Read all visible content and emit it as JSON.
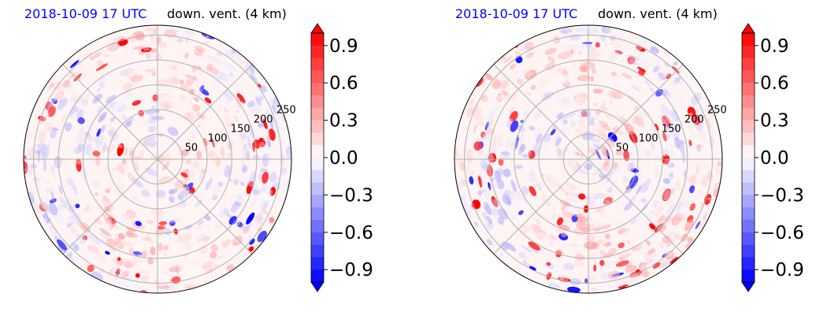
{
  "panels": [
    {
      "id": "left",
      "date_label": "2018-10-09 17 UTC",
      "variable_label": "down. vent. (4 km)"
    },
    {
      "id": "right",
      "date_label": "2018-10-09 17 UTC",
      "variable_label": "down. vent. (4 km)"
    }
  ],
  "colors": {
    "date_label": "#0000ff",
    "positive": "#ff0000",
    "negative": "#0000ff",
    "neutral": "#ffffff",
    "grid": "#b0b0b0"
  },
  "chart_data": [
    {
      "type": "heatmap",
      "projection": "polar",
      "title": "down. vent. (4 km)",
      "subtitle": "2018-10-09 17 UTC",
      "radial_ticks": [
        50,
        100,
        150,
        200,
        250
      ],
      "radial_tick_labels": [
        "50",
        "100",
        "150",
        "200",
        "250"
      ],
      "grid": true,
      "colorbar": {
        "vmin": -1.0,
        "vmax": 1.0,
        "ticks": [
          -0.9,
          -0.6,
          -0.3,
          0.0,
          0.3,
          0.6,
          0.9
        ],
        "tick_labels": [
          "−0.9",
          "−0.6",
          "−0.3",
          "0.0",
          "0.3",
          "0.6",
          "0.9"
        ],
        "colormap": "bwr",
        "extend": "both"
      }
    },
    {
      "type": "heatmap",
      "projection": "polar",
      "title": "down. vent. (4 km)",
      "subtitle": "2018-10-09 17 UTC",
      "radial_ticks": [
        50,
        100,
        150,
        200,
        250
      ],
      "radial_tick_labels": [
        "50",
        "100",
        "150",
        "200",
        "250"
      ],
      "grid": true,
      "colorbar": {
        "vmin": -1.0,
        "vmax": 1.0,
        "ticks": [
          -0.9,
          -0.6,
          -0.3,
          0.0,
          0.3,
          0.6,
          0.9
        ],
        "tick_labels": [
          "−0.9",
          "−0.6",
          "−0.3",
          "0.0",
          "0.3",
          "0.6",
          "0.9"
        ],
        "colormap": "bwr",
        "extend": "both"
      }
    }
  ]
}
